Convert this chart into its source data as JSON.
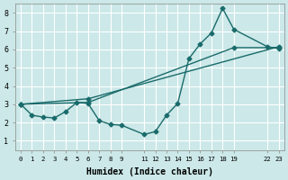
{
  "xlabel": "Humidex (Indice chaleur)",
  "bg_color": "#cce8e8",
  "grid_color": "#ffffff",
  "line_color": "#1a6b6b",
  "xlim": [
    -0.5,
    23.5
  ],
  "ylim": [
    0.5,
    8.5
  ],
  "xticks": [
    0,
    1,
    2,
    3,
    4,
    5,
    6,
    7,
    8,
    9,
    11,
    12,
    13,
    14,
    15,
    16,
    17,
    18,
    19,
    22,
    23
  ],
  "yticks": [
    1,
    2,
    3,
    4,
    5,
    6,
    7,
    8
  ],
  "series_zigzag": {
    "x": [
      0,
      1,
      2,
      3,
      4,
      5,
      6,
      7,
      8,
      9,
      11,
      12,
      13,
      14,
      15,
      16,
      17,
      18,
      19,
      22,
      23
    ],
    "y": [
      3.0,
      2.4,
      2.3,
      2.25,
      2.6,
      3.1,
      3.05,
      2.1,
      1.9,
      1.85,
      1.35,
      1.5,
      2.4,
      3.05,
      5.5,
      6.3,
      6.9,
      8.25,
      7.1,
      6.15,
      6.05
    ]
  },
  "series_line1": {
    "x": [
      0,
      6,
      23
    ],
    "y": [
      3.0,
      3.3,
      6.15
    ]
  },
  "series_line2": {
    "x": [
      0,
      6,
      19,
      23
    ],
    "y": [
      3.0,
      3.1,
      6.1,
      6.1
    ]
  },
  "marker": "D",
  "markersize": 2.5,
  "linewidth": 1.0
}
